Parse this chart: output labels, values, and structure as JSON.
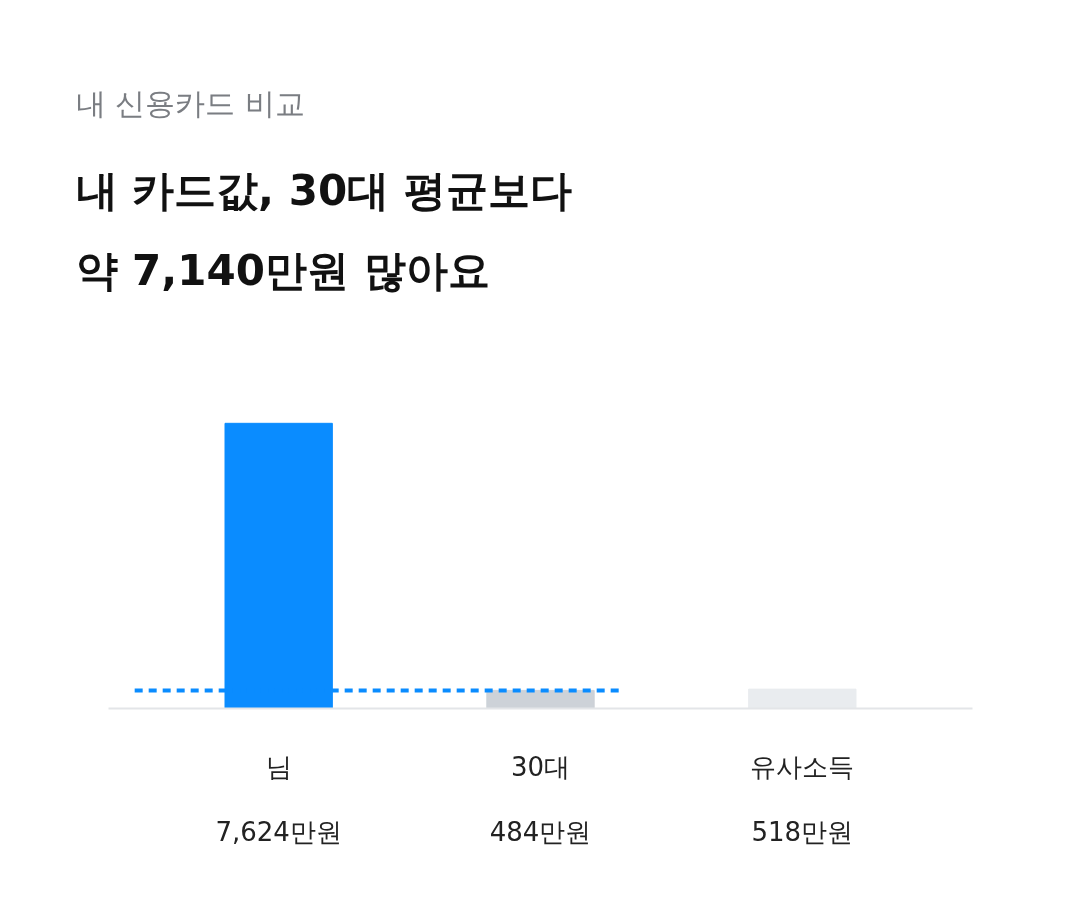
{
  "chart_data": {
    "type": "bar",
    "subtitle": "내 신용카드 비교",
    "title": "내 카드값, 30대 평균보다\n약 7,140만원 많아요",
    "categories": [
      "님",
      "30대",
      "유사소득"
    ],
    "values": [
      7624,
      484,
      518
    ],
    "colors": [
      "#0a8cff",
      "#cdd2d8",
      "#e9ecef"
    ],
    "value_labels": [
      "7,624만원",
      "484만원",
      "518만원"
    ],
    "ref_lines": [
      {
        "axis": "y",
        "value": 484,
        "color": "#0a8cff",
        "line_style": "dashed"
      }
    ],
    "grid": false
  }
}
